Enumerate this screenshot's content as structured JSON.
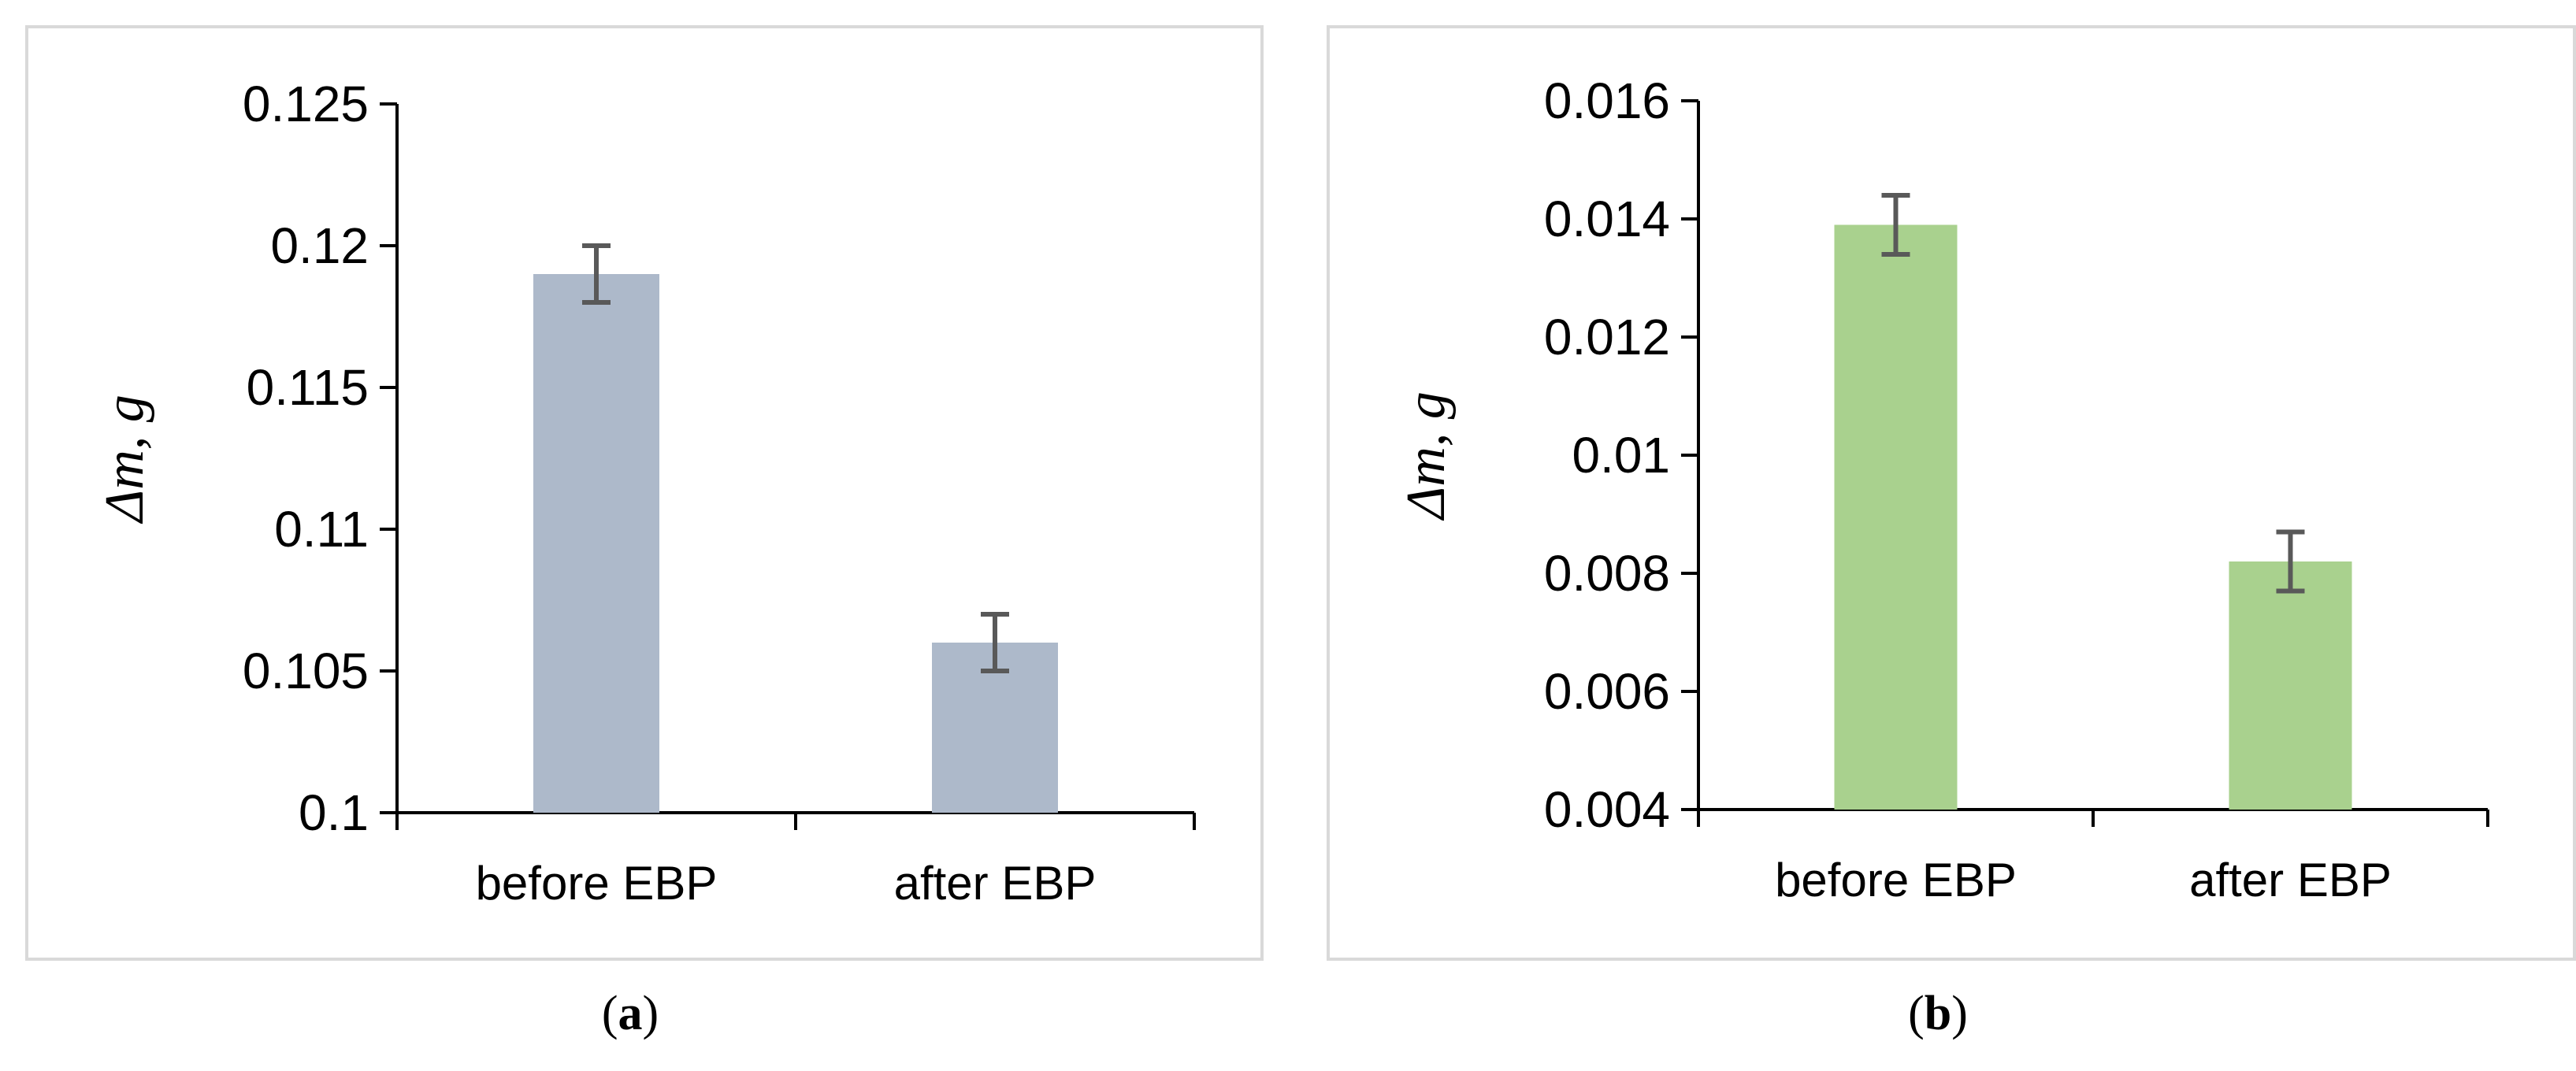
{
  "chart_data": [
    {
      "type": "bar",
      "panel_label": "a",
      "categories": [
        "before EBP",
        "after EBP"
      ],
      "values": [
        0.119,
        0.106
      ],
      "error": [
        0.001,
        0.001
      ],
      "ylabel": "Δm, g",
      "ylim": [
        0.1,
        0.125
      ],
      "yticks": [
        "0.1",
        "0.105",
        "0.11",
        "0.115",
        "0.12",
        "0.125"
      ],
      "ytick_values": [
        0.1,
        0.105,
        0.11,
        0.115,
        0.12,
        0.125
      ],
      "bar_color": "#adb9ca",
      "error_color": "#595959",
      "grid": false,
      "legend": "none"
    },
    {
      "type": "bar",
      "panel_label": "b",
      "categories": [
        "before EBP",
        "after EBP"
      ],
      "values": [
        0.0139,
        0.0082
      ],
      "error": [
        0.0005,
        0.0005
      ],
      "ylabel": "Δm, g",
      "ylim": [
        0.004,
        0.016
      ],
      "yticks": [
        "0.004",
        "0.006",
        "0.008",
        "0.01",
        "0.012",
        "0.014",
        "0.016"
      ],
      "ytick_values": [
        0.004,
        0.006,
        0.008,
        0.01,
        0.012,
        0.014,
        0.016
      ],
      "bar_color": "#a9d18e",
      "error_color": "#595959",
      "grid": false,
      "legend": "none"
    }
  ],
  "captions": [
    {
      "open": "(",
      "letter": "a",
      "close": ")"
    },
    {
      "open": "(",
      "letter": "b",
      "close": ")"
    }
  ]
}
